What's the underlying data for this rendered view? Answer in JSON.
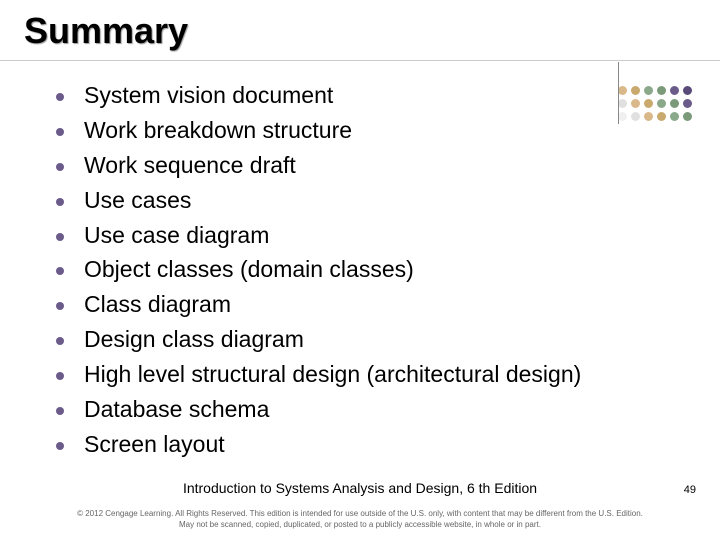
{
  "title": "Summary",
  "title_color": "#000000",
  "title_fontsize": 36,
  "bullet_color": "#6b5b8a",
  "item_fontsize": 23,
  "items": [
    "System vision document",
    "Work breakdown structure",
    "Work sequence draft",
    "Use cases",
    "Use case diagram",
    "Object classes (domain classes)",
    "Class diagram",
    "Design class diagram",
    "High level structural design (architectural design)",
    "Database schema",
    "Screen layout"
  ],
  "footer": {
    "book_title": "Introduction to Systems Analysis and Design, 6 th Edition",
    "page_number": "49",
    "copyright_line1": "© 2012 Cengage Learning. All Rights Reserved. This edition is intended for use outside of the U.S. only, with content that may be different from the U.S. Edition.",
    "copyright_line2": "May not be scanned, copied, duplicated, or posted to a publicly accessible website, in whole or in part."
  },
  "decoration": {
    "dot_colors": [
      [
        "#d9b88a",
        "#c9a96e",
        "#8aa88a",
        "#7a9a7a",
        "#6b5b8a",
        "#5a4a7a"
      ],
      [
        "#e0e0e0",
        "#d9b88a",
        "#c9a96e",
        "#8aa88a",
        "#7a9a7a",
        "#6b5b8a"
      ],
      [
        "#f0f0f0",
        "#e0e0e0",
        "#d9b88a",
        "#c9a96e",
        "#8aa88a",
        "#7a9a7a"
      ]
    ]
  },
  "background_color": "#ffffff"
}
